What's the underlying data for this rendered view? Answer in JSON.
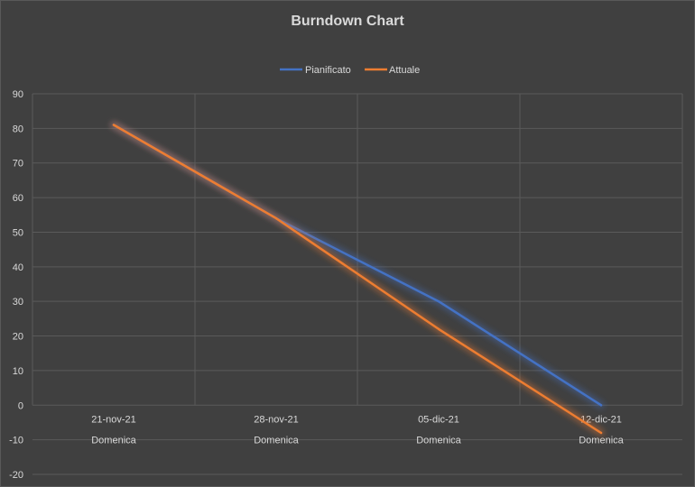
{
  "chart_data": {
    "type": "line",
    "title": "Burndown Chart",
    "categories": [
      "21-nov-21",
      "28-nov-21",
      "05-dic-21",
      "12-dic-21"
    ],
    "category_sublabels": [
      "Domenica",
      "Domenica",
      "Domenica",
      "Domenica"
    ],
    "series": [
      {
        "name": "Pianificato",
        "values": [
          81,
          54,
          30,
          0
        ],
        "color": "#4472c4"
      },
      {
        "name": "Attuale",
        "values": [
          81,
          54,
          22,
          -8
        ],
        "color": "#ed7d31"
      }
    ],
    "ylim": [
      -20,
      90
    ],
    "yticks": [
      90,
      80,
      70,
      60,
      50,
      40,
      30,
      20,
      10,
      0,
      -10,
      -20
    ],
    "grid": true,
    "legend_position": "top"
  }
}
